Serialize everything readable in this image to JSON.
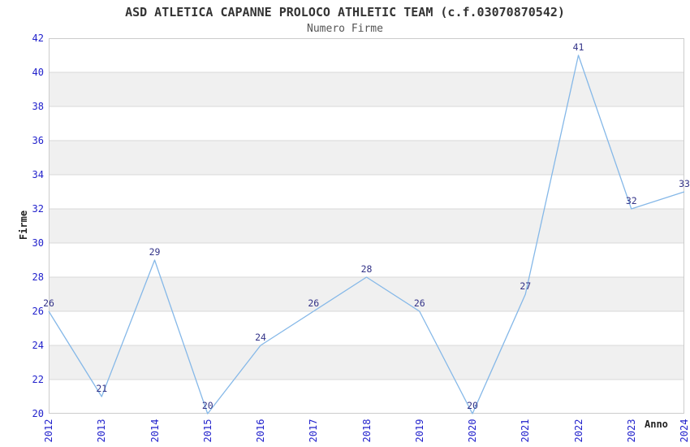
{
  "title": "ASD ATLETICA CAPANNE PROLOCO ATHLETIC TEAM (c.f.03070870542)",
  "subtitle": "Numero Firme",
  "chart_data": {
    "type": "line",
    "title": "ASD ATLETICA CAPANNE PROLOCO ATHLETIC TEAM (c.f.03070870542)",
    "subtitle": "Numero Firme",
    "xlabel": "Anno",
    "ylabel": "Firme",
    "x": [
      2012,
      2013,
      2014,
      2015,
      2016,
      2017,
      2018,
      2019,
      2020,
      2021,
      2022,
      2023,
      2024
    ],
    "series": [
      {
        "name": "Numero Firme",
        "values": [
          26,
          21,
          29,
          20,
          24,
          26,
          28,
          26,
          20,
          27,
          41,
          32,
          33
        ]
      }
    ],
    "ylim": [
      20,
      42
    ],
    "ytick_step": 2,
    "yticks": [
      20,
      22,
      24,
      26,
      28,
      30,
      32,
      34,
      36,
      38,
      40,
      42
    ],
    "grid": "horizontal-bands",
    "legend_position": "none",
    "point_labels_visible": true,
    "colors": {
      "line": "#85b8e8",
      "point_label": "#333388",
      "tick_label": "#2222cc",
      "title": "#333333",
      "subtitle": "#555555",
      "axis_label": "#222222",
      "band_gray": "#f0f0f0",
      "band_white": "#ffffff",
      "gridline": "#d9d9d9",
      "plot_border": "#cccccc",
      "background": "#ffffff"
    }
  }
}
